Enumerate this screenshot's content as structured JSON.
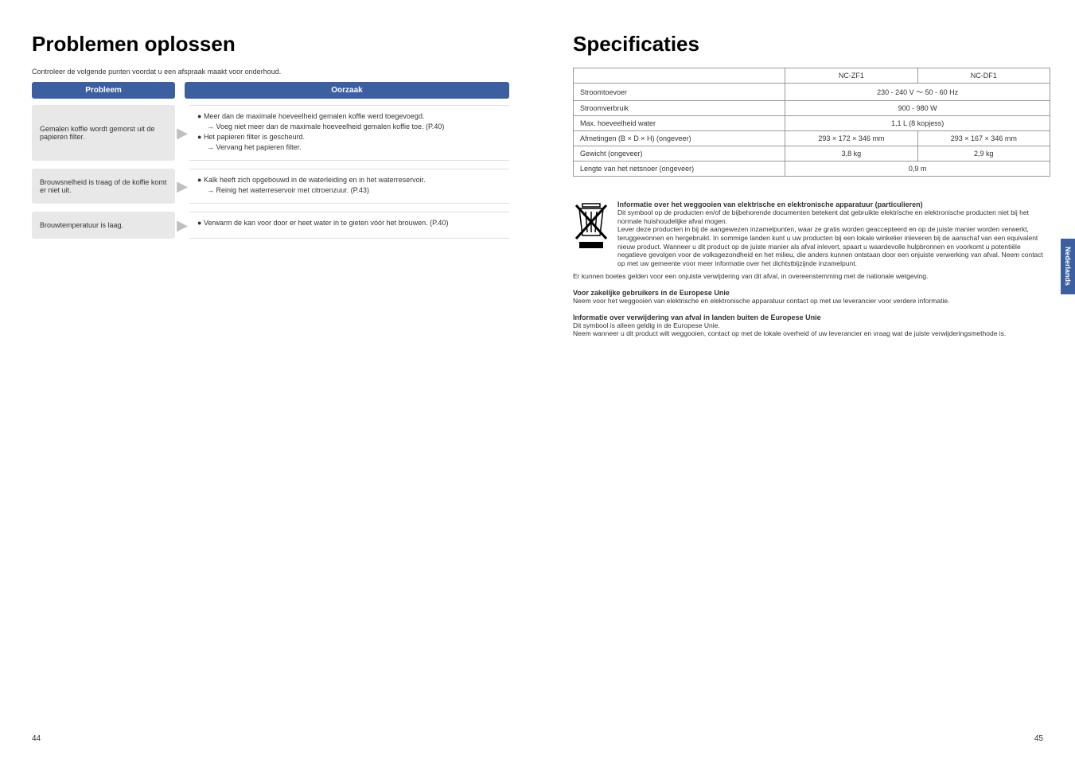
{
  "left": {
    "title": "Problemen oplossen",
    "intro": "Controleer de volgende punten voordat u een afspraak maakt voor onderhoud.",
    "header_problem": "Probleem",
    "header_cause": "Oorzaak",
    "rows": [
      {
        "problem": "Gemalen koffie wordt gemorst uit de papieren filter.",
        "causes": [
          {
            "cls": "bullet",
            "text": "Meer dan de maximale hoeveelheid gemalen koffie werd toegevoegd."
          },
          {
            "cls": "sub-arrow",
            "text": "Voeg niet meer dan de maximale hoeveelheid gemalen koffie toe. (P.40)"
          },
          {
            "cls": "bullet",
            "text": "Het papieren filter is gescheurd."
          },
          {
            "cls": "sub-arrow",
            "text": "Vervang het papieren filter."
          }
        ]
      },
      {
        "problem": "Brouwsnelheid is traag of de koffie komt er niet uit.",
        "causes": [
          {
            "cls": "bullet",
            "text": "Kalk heeft zich opgebouwd in de waterleiding en in het waterreservoir."
          },
          {
            "cls": "sub-arrow",
            "text": "Reinig het waterreservoir met citroenzuur. (P.43)"
          }
        ]
      },
      {
        "problem": "Brouwtemperatuur is laag.",
        "causes": [
          {
            "cls": "bullet",
            "text": "Verwarm de kan voor door er heet water in te gieten vóór het brouwen. (P.40)"
          }
        ]
      }
    ]
  },
  "right": {
    "title": "Specificaties",
    "spec_cols": [
      "NC-ZF1",
      "NC-DF1"
    ],
    "spec_rows": [
      {
        "label": "Stroomtoevoer",
        "values": [
          "230 - 240 V ～ 50 - 60 Hz"
        ],
        "span": true
      },
      {
        "label": "Stroomverbruik",
        "values": [
          "900 - 980 W"
        ],
        "span": true
      },
      {
        "label": "Max. hoeveelheid water",
        "values": [
          "1,1 L (8 kopjess)"
        ],
        "span": true
      },
      {
        "label": "Afmetingen (B × D × H) (ongeveer)",
        "values": [
          "293 × 172 × 346 mm",
          "293 × 167 × 346 mm"
        ],
        "span": false
      },
      {
        "label": "Gewicht (ongeveer)",
        "values": [
          "3,8 kg",
          "2,9 kg"
        ],
        "span": false
      },
      {
        "label": "Lengte van het netsnoer (ongeveer)",
        "values": [
          "0,9 m"
        ],
        "span": true
      }
    ],
    "weee_title": "Informatie over het weggooien van elektrische en elektronische apparatuur (particulieren)",
    "weee_p1": "Dit symbool op de producten en/of de bijbehorende documenten betekent dat gebruikte elektrische en elektronische producten niet bij het normale huishoudelijke afval mogen.",
    "weee_p2": "Lever deze producten in bij de aangewezen inzamelpunten, waar ze gratis worden geaccepteerd en op de juiste manier worden verwerkt, teruggewonnen en hergebruikt. In sommige landen kunt u uw producten bij een lokale winkelier inleveren bij de aanschaf van een equivalent nieuw product. Wanneer u dit product op de juiste manier als afval inlevert, spaart u waardevolle hulpbronnen en voorkomt u potentiële negatieve gevolgen voor de volksgezondheid en het milieu, die anders kunnen ontstaan door een onjuiste verwerking van afval. Neem contact op met uw gemeente voor meer informatie over het dichtstbijzijnde inzamelpunt.",
    "weee_p3": "Er kunnen boetes gelden voor een onjuiste verwijdering van dit afval, in overeenstemming met de nationale wetgeving.",
    "biz_title": "Voor zakelijke gebruikers in de Europese Unie",
    "biz_p": "Neem voor het weggooien van elektrische en elektronische apparatuur contact op met uw leverancier voor verdere informatie.",
    "outeu_title": "Informatie over verwijdering van afval in landen buiten de Europese Unie",
    "outeu_p1": "Dit symbool is alleen geldig in de Europese Unie.",
    "outeu_p2": "Neem wanneer u dit product wilt weggooien, contact op met de lokale overheid of uw leverancier en vraag wat de juiste verwijderingsmethode is."
  },
  "tab": "Nederlands",
  "page_left": "44",
  "page_right": "45"
}
